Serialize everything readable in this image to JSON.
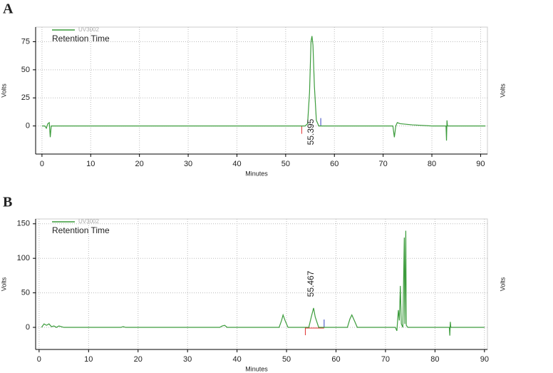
{
  "chart_data": [
    {
      "type": "line",
      "panel": "A",
      "legend": "UV3002",
      "subtitle": "Retention Time",
      "xlabel": "Minutes",
      "ylabel": "Volts",
      "y2label": "Volts",
      "annotation": "55.395",
      "color": "#3c9c3c",
      "grid": true,
      "xlim": [
        -1.3,
        91.4
      ],
      "ylim": [
        -25,
        88
      ],
      "xticks": [
        0,
        10,
        20,
        30,
        40,
        50,
        60,
        70,
        80,
        90
      ],
      "yticks": [
        0,
        25,
        50,
        75
      ],
      "baseline_marks": {
        "start": 53.3,
        "end": 57.2
      },
      "x": [
        0,
        0.6,
        0.9,
        1.2,
        1.5,
        1.7,
        1.9,
        10,
        30,
        50,
        54,
        54.5,
        54.9,
        55.2,
        55.395,
        55.6,
        55.9,
        56.3,
        56.8,
        72,
        72.3,
        72.6,
        72.9,
        73.5,
        76,
        80,
        82.9,
        83,
        83.1,
        83.2,
        91
      ],
      "values": [
        0,
        0,
        -2,
        2,
        3,
        -10,
        0,
        0,
        0,
        0,
        0,
        2,
        30,
        75,
        80,
        72,
        35,
        5,
        0,
        0,
        -10,
        0,
        3,
        2,
        1,
        0,
        0,
        -13,
        5,
        0,
        0
      ]
    },
    {
      "type": "line",
      "panel": "B",
      "legend": "UV3002",
      "subtitle": "Retention Time",
      "xlabel": "Minutes",
      "ylabel": "Volts",
      "y2label": "Volts",
      "annotation": "55.467",
      "color": "#3c9c3c",
      "grid": true,
      "xlim": [
        -0.7,
        90.6
      ],
      "ylim": [
        -32,
        157
      ],
      "xticks": [
        0,
        10,
        20,
        30,
        40,
        50,
        60,
        70,
        80,
        90
      ],
      "yticks": [
        0,
        50,
        100,
        150
      ],
      "baseline_marks": {
        "start": 53.8,
        "end": 57.6
      },
      "x": [
        0.5,
        1,
        1.5,
        2,
        2.5,
        3,
        3.5,
        4,
        5,
        16.5,
        17,
        17.5,
        36.5,
        37,
        37.5,
        38,
        48.5,
        49,
        49.3,
        49.7,
        50.3,
        54.5,
        55,
        55.467,
        55.8,
        56.5,
        62.3,
        62.8,
        63.2,
        63.7,
        64.3,
        72,
        72.3,
        72.6,
        72.8,
        73,
        73.2,
        73.5,
        73.8,
        73.9,
        74.1,
        74.2,
        74.5,
        82.9,
        83,
        83.1,
        83.2,
        90
      ],
      "values": [
        0,
        5,
        3,
        5,
        1,
        2,
        0,
        2,
        0,
        0,
        1,
        0,
        0,
        2,
        3,
        0,
        0,
        10,
        18,
        10,
        0,
        0,
        15,
        28,
        15,
        0,
        0,
        12,
        18,
        10,
        0,
        0,
        -5,
        25,
        10,
        60,
        5,
        0,
        130,
        5,
        140,
        3,
        0,
        0,
        -12,
        8,
        0,
        0
      ]
    }
  ]
}
